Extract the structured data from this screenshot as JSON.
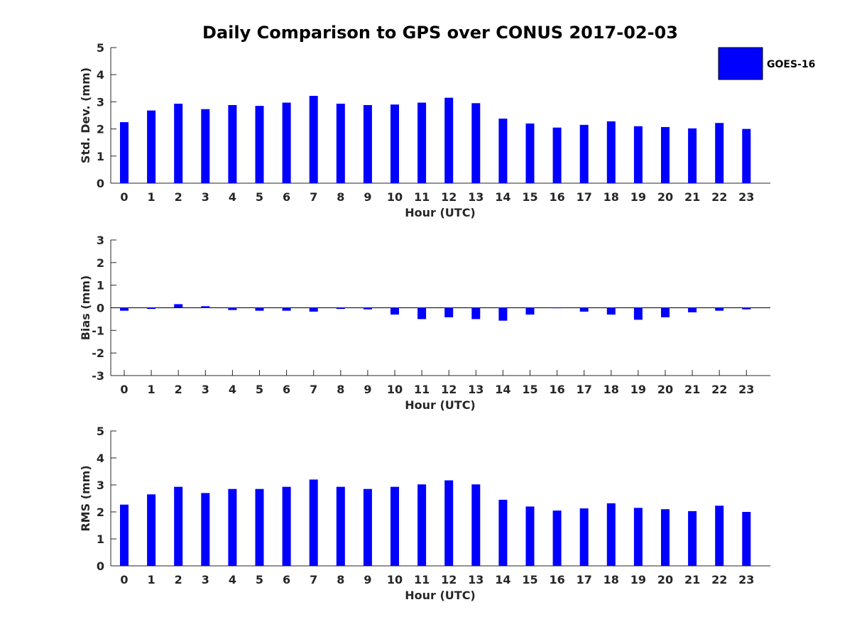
{
  "chart_data": {
    "title": "Daily Comparison to GPS over CONUS 2017-02-03",
    "legend": {
      "label": "GOES-16",
      "color": "#0000ff",
      "placement": "top-right"
    },
    "panels": [
      {
        "type": "bar",
        "key": "stddev",
        "ylabel": "Std. Dev. (mm)",
        "xlabel": "Hour (UTC)",
        "ylim": [
          0,
          5
        ],
        "yticks": [
          "0",
          "1",
          "2",
          "3",
          "4",
          "5"
        ],
        "categories": [
          "0",
          "1",
          "2",
          "3",
          "4",
          "5",
          "6",
          "7",
          "8",
          "9",
          "10",
          "11",
          "12",
          "13",
          "14",
          "15",
          "16",
          "17",
          "18",
          "19",
          "20",
          "21",
          "22",
          "23"
        ],
        "values": [
          2.25,
          2.68,
          2.93,
          2.73,
          2.88,
          2.85,
          2.97,
          3.22,
          2.93,
          2.88,
          2.9,
          2.97,
          3.15,
          2.95,
          2.38,
          2.2,
          2.05,
          2.15,
          2.28,
          2.1,
          2.07,
          2.02,
          2.22,
          2.0
        ]
      },
      {
        "type": "bar",
        "key": "bias",
        "ylabel": "Bias (mm)",
        "xlabel": "Hour (UTC)",
        "ylim": [
          -3,
          3
        ],
        "yticks": [
          "-3",
          "-2",
          "-1",
          "0",
          "1",
          "2",
          "3"
        ],
        "categories": [
          "0",
          "1",
          "2",
          "3",
          "4",
          "5",
          "6",
          "7",
          "8",
          "9",
          "10",
          "11",
          "12",
          "13",
          "14",
          "15",
          "16",
          "17",
          "18",
          "19",
          "20",
          "21",
          "22",
          "23"
        ],
        "values": [
          -0.13,
          -0.05,
          0.16,
          0.07,
          -0.1,
          -0.13,
          -0.13,
          -0.17,
          -0.05,
          -0.07,
          -0.3,
          -0.5,
          -0.42,
          -0.5,
          -0.57,
          -0.3,
          -0.02,
          -0.17,
          -0.3,
          -0.53,
          -0.42,
          -0.2,
          -0.13,
          -0.07
        ]
      },
      {
        "type": "bar",
        "key": "rms",
        "ylabel": "RMS (mm)",
        "xlabel": "Hour (UTC)",
        "ylim": [
          0,
          5
        ],
        "yticks": [
          "0",
          "1",
          "2",
          "3",
          "4",
          "5"
        ],
        "categories": [
          "0",
          "1",
          "2",
          "3",
          "4",
          "5",
          "6",
          "7",
          "8",
          "9",
          "10",
          "11",
          "12",
          "13",
          "14",
          "15",
          "16",
          "17",
          "18",
          "19",
          "20",
          "21",
          "22",
          "23"
        ],
        "values": [
          2.27,
          2.65,
          2.93,
          2.7,
          2.85,
          2.85,
          2.93,
          3.2,
          2.93,
          2.85,
          2.93,
          3.02,
          3.17,
          3.02,
          2.45,
          2.2,
          2.05,
          2.13,
          2.32,
          2.15,
          2.1,
          2.03,
          2.23,
          2.0
        ]
      }
    ]
  }
}
